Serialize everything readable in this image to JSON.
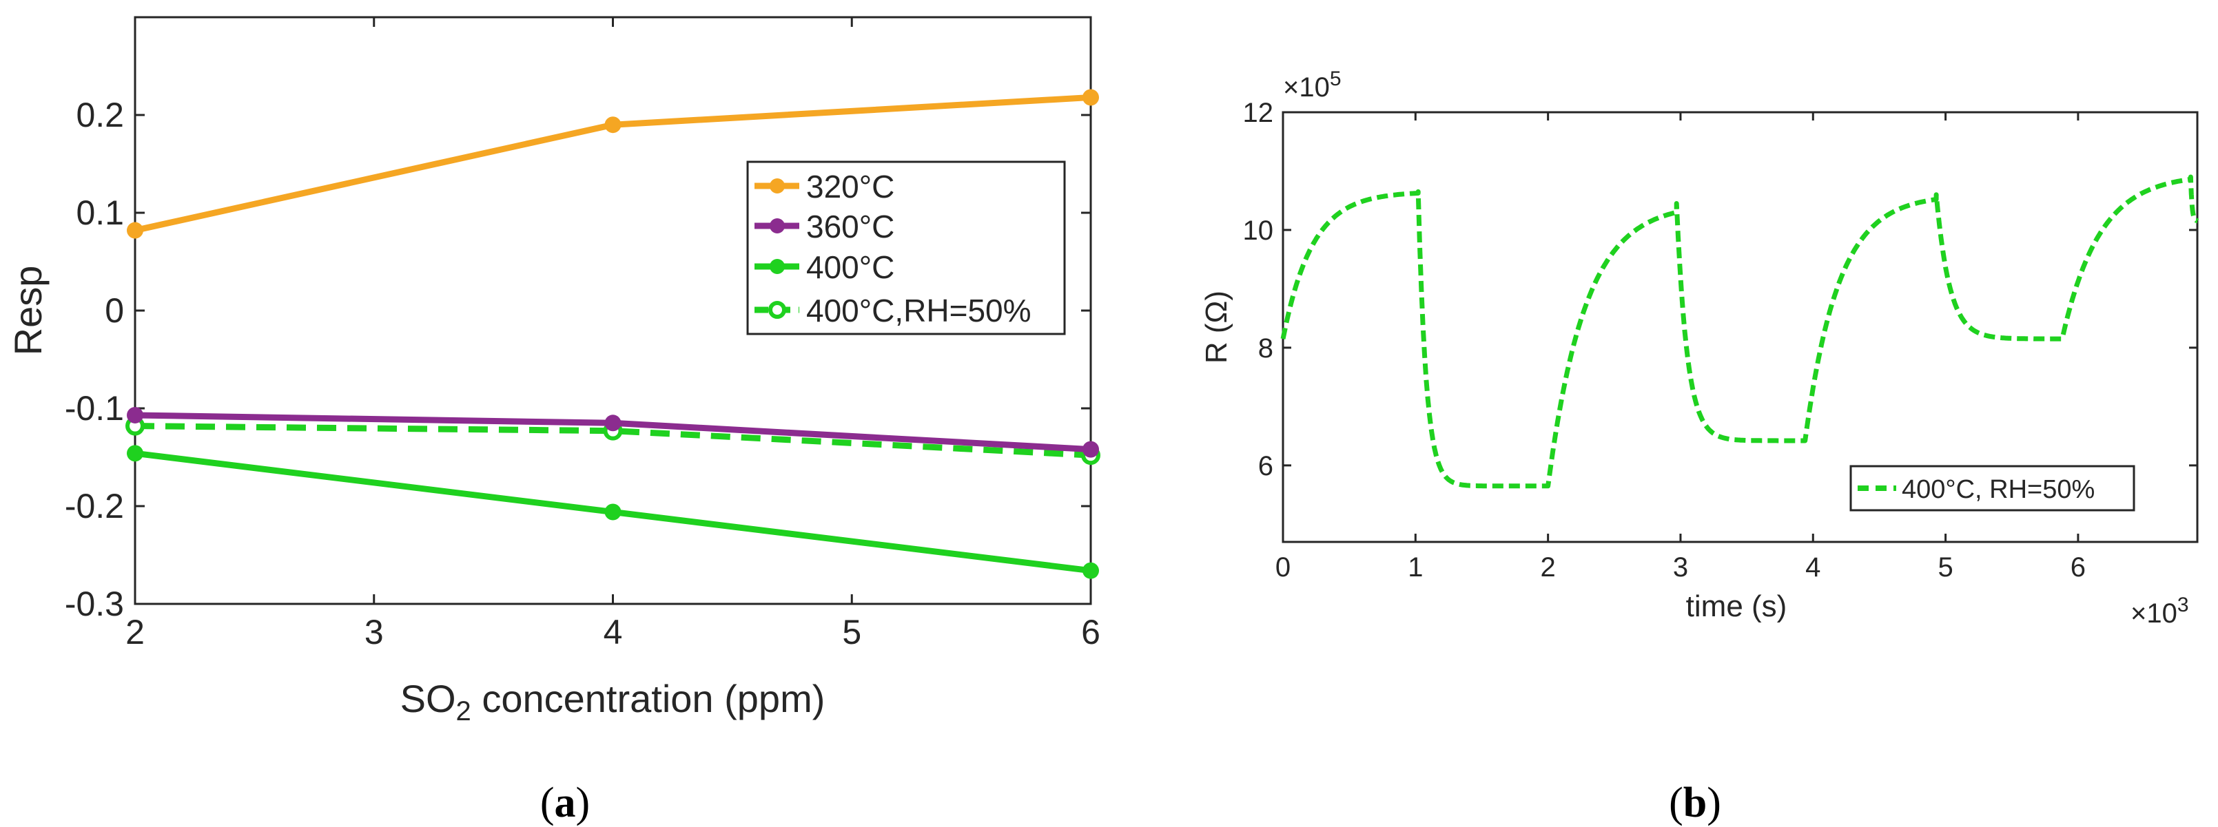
{
  "chart_data": [
    {
      "type": "line",
      "panel": "a",
      "caption": "(a)",
      "xlabel_main": "SO",
      "xlabel_sub": "2",
      "xlabel_rest": " concentration (ppm)",
      "ylabel": "Resp",
      "xlim": [
        2,
        6
      ],
      "ylim": [
        -0.3,
        0.3
      ],
      "x_ticks": [
        "2",
        "3",
        "4",
        "5",
        "6"
      ],
      "y_ticks": [
        "-0.3",
        "-0.2",
        "-0.1",
        "0",
        "0.1",
        "0.2"
      ],
      "x": [
        2,
        4,
        6
      ],
      "series": [
        {
          "name": "320°C",
          "values": [
            0.082,
            0.19,
            0.218
          ],
          "color": "#f5a623",
          "dashed": false
        },
        {
          "name": "360°C",
          "values": [
            -0.107,
            -0.115,
            -0.142
          ],
          "color": "#8b2c8f",
          "dashed": false
        },
        {
          "name": "400°C",
          "values": [
            -0.146,
            -0.206,
            -0.266
          ],
          "color": "#1fd11f",
          "dashed": false
        },
        {
          "name": "400°C,RH=50%",
          "values": [
            -0.118,
            -0.123,
            -0.148
          ],
          "color": "#1fd11f",
          "dashed": true
        }
      ],
      "legend_position": "center-right"
    },
    {
      "type": "line",
      "panel": "b",
      "caption": "(b)",
      "xlabel": "time (s)",
      "ylabel": "R (Ω)",
      "x_exponent": "×10",
      "x_exponent_power": "3",
      "y_exponent": "×10",
      "y_exponent_power": "5",
      "xlim": [
        0,
        6.9
      ],
      "ylim": [
        4.7,
        12
      ],
      "x_ticks": [
        "0",
        "1",
        "2",
        "3",
        "4",
        "5",
        "6"
      ],
      "y_ticks": [
        "6",
        "8",
        "10",
        "12"
      ],
      "series": [
        {
          "name": "400°C, RH=50%",
          "color": "#1fd11f",
          "dashed": true,
          "cycles": [
            {
              "t_start": 0.0,
              "t_end": 1.02,
              "from": 8.15,
              "to": 10.65,
              "tau": 0.22
            },
            {
              "t_start": 1.02,
              "t_end": 2.0,
              "from": 10.65,
              "to": 5.65,
              "tau": 0.06
            },
            {
              "t_start": 2.0,
              "t_end": 2.97,
              "from": 5.65,
              "to": 10.45,
              "tau": 0.28
            },
            {
              "t_start": 2.97,
              "t_end": 3.94,
              "from": 10.45,
              "to": 6.42,
              "tau": 0.08
            },
            {
              "t_start": 3.94,
              "t_end": 4.93,
              "from": 6.42,
              "to": 10.6,
              "tau": 0.25
            },
            {
              "t_start": 4.93,
              "t_end": 5.88,
              "from": 10.6,
              "to": 8.15,
              "tau": 0.1
            },
            {
              "t_start": 5.88,
              "t_end": 6.85,
              "from": 8.15,
              "to": 10.95,
              "tau": 0.28
            },
            {
              "t_start": 6.85,
              "t_end": 6.9,
              "from": 10.9,
              "to": 10.15,
              "tau": 0.01
            }
          ]
        }
      ],
      "legend_position": "bottom-right"
    }
  ]
}
